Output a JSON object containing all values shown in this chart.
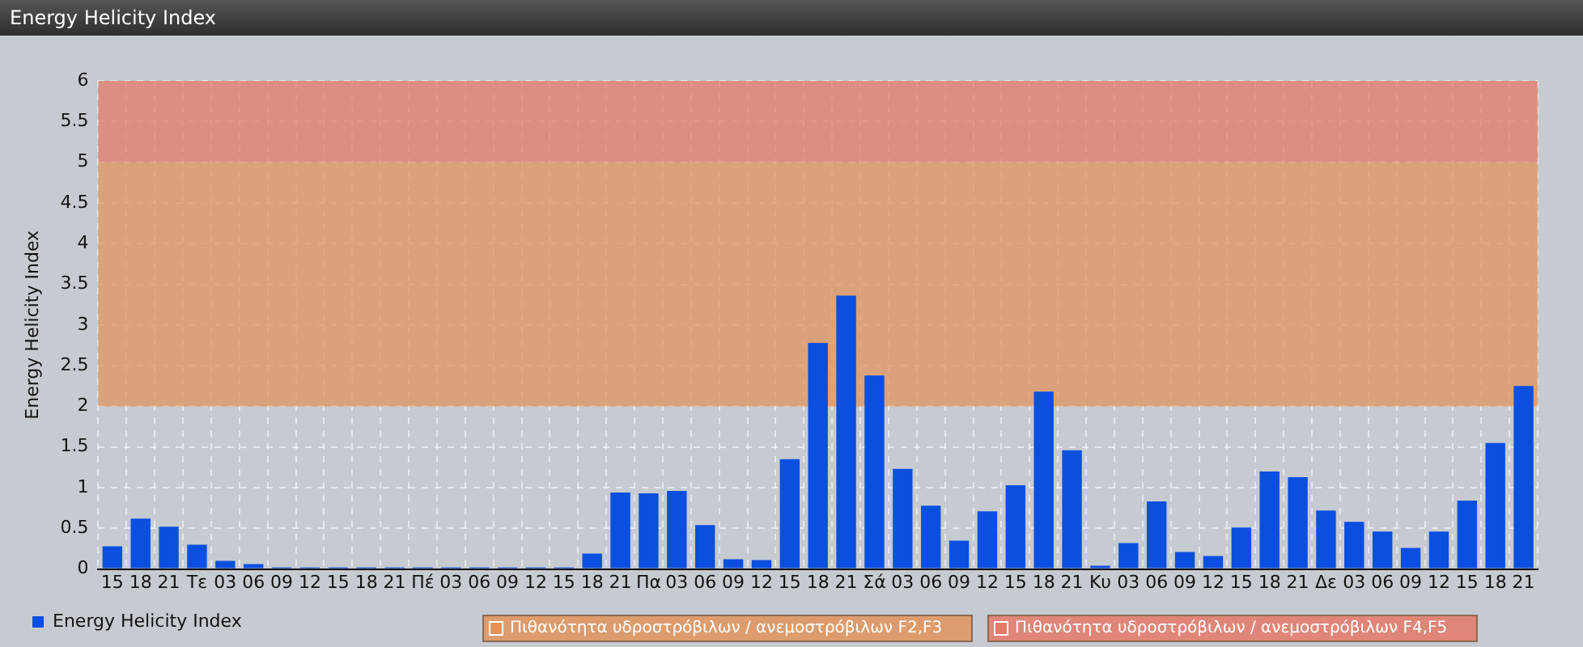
{
  "chart_data": {
    "type": "bar",
    "title": "Energy Helicity Index",
    "ylabel": "Energy Helicity Index",
    "categories": [
      "15",
      "18",
      "21",
      "Τε",
      "03",
      "06",
      "09",
      "12",
      "15",
      "18",
      "21",
      "Πέ",
      "03",
      "06",
      "09",
      "12",
      "15",
      "18",
      "21",
      "Πα",
      "03",
      "06",
      "09",
      "12",
      "15",
      "18",
      "21",
      "Σά",
      "03",
      "06",
      "09",
      "12",
      "15",
      "18",
      "21",
      "Κυ",
      "03",
      "06",
      "09",
      "12",
      "15",
      "18",
      "21",
      "Δε",
      "03",
      "06",
      "09",
      "12",
      "15",
      "18",
      "21"
    ],
    "series": [
      {
        "name": "Energy Helicity Index",
        "color": "#0b4fe0",
        "values": [
          0.28,
          0.62,
          0.52,
          0.3,
          0.1,
          0.06,
          0.02,
          0.02,
          0.02,
          0.02,
          0.02,
          0.02,
          0.02,
          0.02,
          0.02,
          0.02,
          0.02,
          0.19,
          0.94,
          0.93,
          0.96,
          0.54,
          0.12,
          0.11,
          1.35,
          2.78,
          3.36,
          2.38,
          1.23,
          0.78,
          0.35,
          0.71,
          1.03,
          2.18,
          1.46,
          0.04,
          0.32,
          0.83,
          0.21,
          0.16,
          0.51,
          1.2,
          1.13,
          0.72,
          0.58,
          0.46,
          0.26,
          0.46,
          0.84,
          1.55,
          2.25
        ]
      }
    ],
    "ylim": [
      0,
      6
    ],
    "yticks": [
      0,
      0.5,
      1,
      1.5,
      2,
      2.5,
      3,
      3.5,
      4,
      4.5,
      5,
      5.5,
      6
    ],
    "bands": [
      {
        "axis": "y",
        "from": 2,
        "to": 5,
        "label": "Πιθανότητα υδροστρόβιλων / ανεμοστρόβιλων F2,F3",
        "color": "#e0945c"
      },
      {
        "axis": "y",
        "from": 5,
        "to": 6,
        "label": "Πιθανότητα υδροστρόβιλων / ανεμοστρόβιλων F4,F5",
        "color": "#e47a68"
      }
    ],
    "grid": true,
    "legend": "bottom left"
  }
}
